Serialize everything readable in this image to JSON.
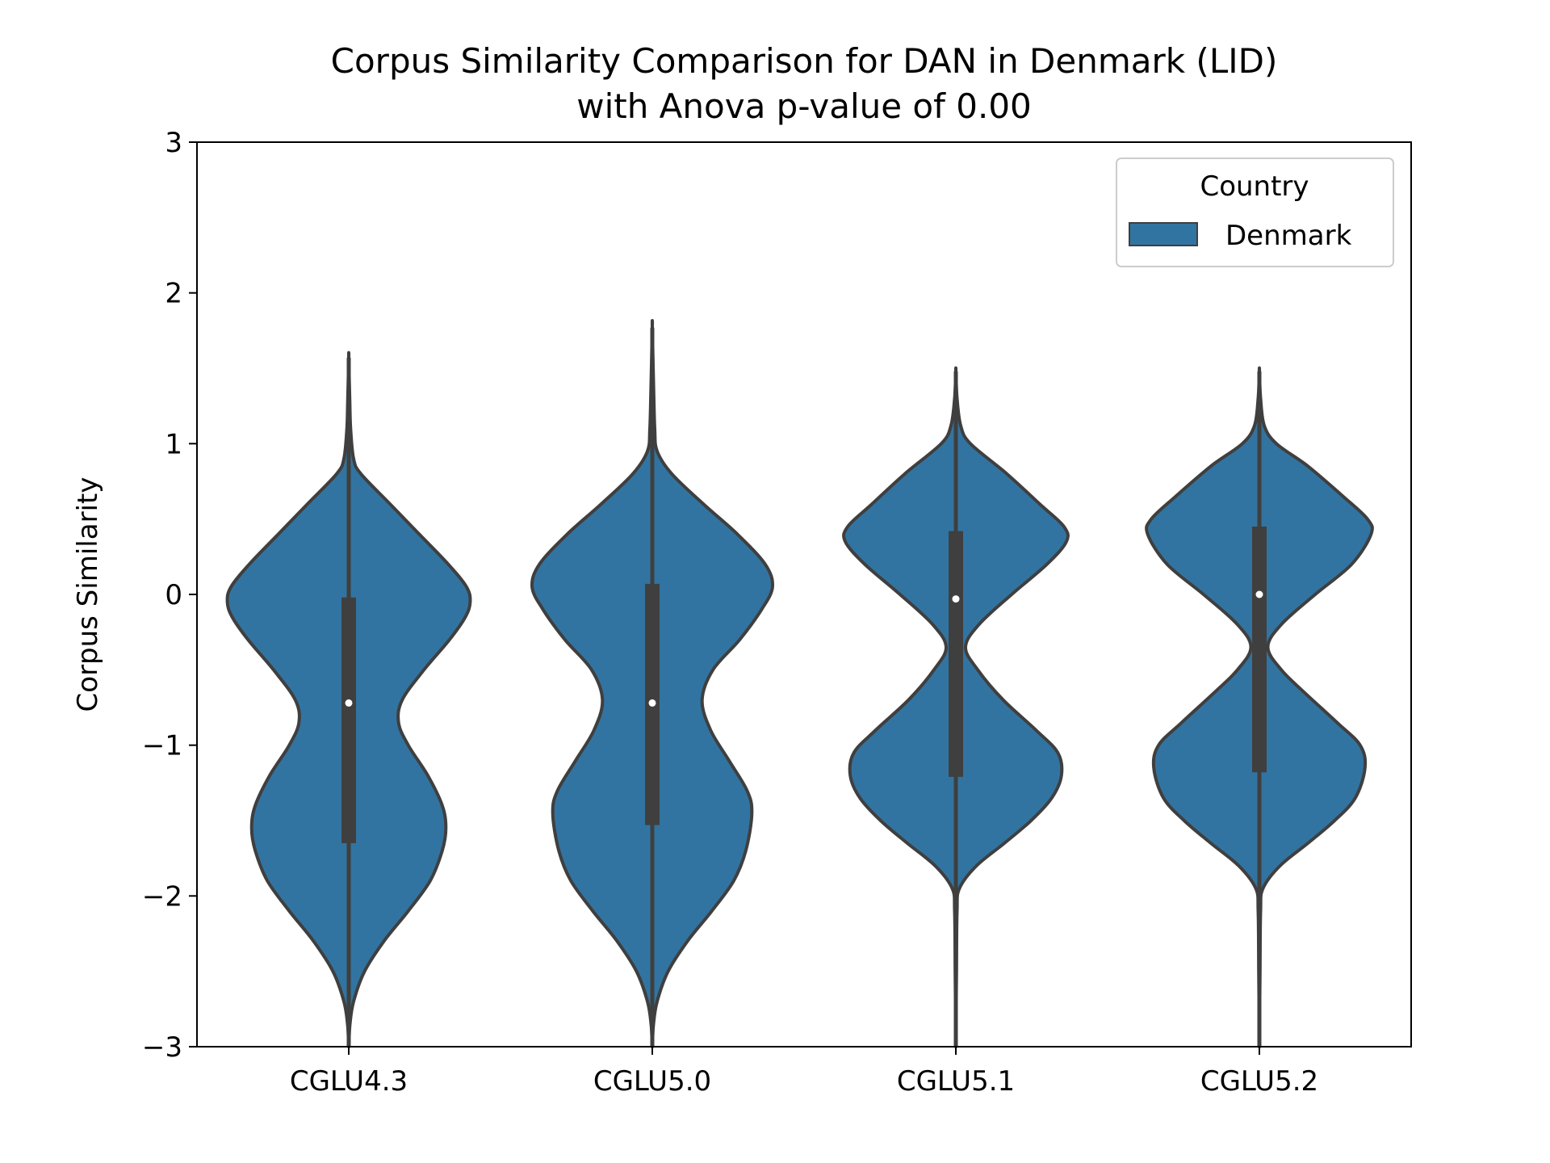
{
  "chart_data": {
    "type": "violin",
    "title_line1": "Corpus Similarity Comparison for DAN in Denmark (LID)",
    "title_line2": "with Anova p-value of 0.00",
    "xlabel": "",
    "ylabel": "Corpus Similarity",
    "ylim": [
      -3,
      3
    ],
    "yticks": [
      -3,
      -2,
      -1,
      0,
      1,
      2,
      3
    ],
    "ytick_labels": [
      "−3",
      "−2",
      "−1",
      "0",
      "1",
      "2",
      "3"
    ],
    "categories": [
      "CGLU4.3",
      "CGLU5.0",
      "CGLU5.1",
      "CGLU5.2"
    ],
    "legend": {
      "title": "Country",
      "entries": [
        "Denmark"
      ],
      "position": "top-right"
    },
    "colors": {
      "fill": "#3274a1",
      "edge": "#3f3f3f",
      "box": "#3f3f3f",
      "median": "#ffffff"
    },
    "series": [
      {
        "name": "Denmark",
        "violins": [
          {
            "category": "CGLU4.3",
            "min": -3.0,
            "q1": -1.65,
            "median": -0.72,
            "q3": -0.02,
            "max": 1.57,
            "profile": [
              [
                -3.0,
                0.0
              ],
              [
                -2.85,
                0.01
              ],
              [
                -2.7,
                0.04
              ],
              [
                -2.5,
                0.13
              ],
              [
                -2.3,
                0.29
              ],
              [
                -2.1,
                0.49
              ],
              [
                -1.9,
                0.67
              ],
              [
                -1.7,
                0.77
              ],
              [
                -1.55,
                0.8
              ],
              [
                -1.4,
                0.77
              ],
              [
                -1.2,
                0.65
              ],
              [
                -1.0,
                0.49
              ],
              [
                -0.85,
                0.41
              ],
              [
                -0.7,
                0.44
              ],
              [
                -0.5,
                0.62
              ],
              [
                -0.3,
                0.83
              ],
              [
                -0.15,
                0.96
              ],
              [
                -0.05,
                1.0
              ],
              [
                0.05,
                0.97
              ],
              [
                0.2,
                0.82
              ],
              [
                0.4,
                0.58
              ],
              [
                0.6,
                0.34
              ],
              [
                0.8,
                0.1
              ],
              [
                0.9,
                0.04
              ],
              [
                1.1,
                0.015
              ],
              [
                1.3,
                0.008
              ],
              [
                1.57,
                0.0
              ]
            ]
          },
          {
            "category": "CGLU5.0",
            "min": -3.0,
            "q1": -1.53,
            "median": -0.72,
            "q3": 0.07,
            "max": 1.77,
            "profile": [
              [
                -3.0,
                0.0
              ],
              [
                -2.85,
                0.01
              ],
              [
                -2.7,
                0.04
              ],
              [
                -2.5,
                0.13
              ],
              [
                -2.3,
                0.29
              ],
              [
                -2.1,
                0.49
              ],
              [
                -1.9,
                0.67
              ],
              [
                -1.7,
                0.77
              ],
              [
                -1.45,
                0.82
              ],
              [
                -1.3,
                0.78
              ],
              [
                -1.1,
                0.63
              ],
              [
                -0.9,
                0.48
              ],
              [
                -0.7,
                0.41
              ],
              [
                -0.5,
                0.5
              ],
              [
                -0.3,
                0.72
              ],
              [
                -0.1,
                0.9
              ],
              [
                0.05,
                0.99
              ],
              [
                0.2,
                0.93
              ],
              [
                0.4,
                0.7
              ],
              [
                0.6,
                0.42
              ],
              [
                0.8,
                0.16
              ],
              [
                0.95,
                0.04
              ],
              [
                1.1,
                0.02
              ],
              [
                1.4,
                0.01
              ],
              [
                1.77,
                0.0
              ]
            ]
          },
          {
            "category": "CGLU5.1",
            "min": -3.0,
            "q1": -1.21,
            "median": -0.03,
            "q3": 0.42,
            "max": 1.48,
            "profile": [
              [
                -3.0,
                0.0
              ],
              [
                -2.5,
                0.005
              ],
              [
                -2.1,
                0.01
              ],
              [
                -1.95,
                0.03
              ],
              [
                -1.8,
                0.17
              ],
              [
                -1.65,
                0.4
              ],
              [
                -1.5,
                0.62
              ],
              [
                -1.35,
                0.79
              ],
              [
                -1.2,
                0.87
              ],
              [
                -1.05,
                0.84
              ],
              [
                -0.9,
                0.66
              ],
              [
                -0.7,
                0.39
              ],
              [
                -0.5,
                0.18
              ],
              [
                -0.35,
                0.08
              ],
              [
                -0.2,
                0.19
              ],
              [
                0.0,
                0.46
              ],
              [
                0.2,
                0.75
              ],
              [
                0.35,
                0.91
              ],
              [
                0.45,
                0.89
              ],
              [
                0.6,
                0.69
              ],
              [
                0.8,
                0.42
              ],
              [
                1.0,
                0.12
              ],
              [
                1.12,
                0.04
              ],
              [
                1.3,
                0.01
              ],
              [
                1.48,
                0.0
              ]
            ]
          },
          {
            "category": "CGLU5.2",
            "min": -3.0,
            "q1": -1.18,
            "median": 0.0,
            "q3": 0.45,
            "max": 1.48,
            "profile": [
              [
                -3.0,
                0.0
              ],
              [
                -2.5,
                0.005
              ],
              [
                -2.1,
                0.01
              ],
              [
                -1.95,
                0.03
              ],
              [
                -1.8,
                0.17
              ],
              [
                -1.65,
                0.4
              ],
              [
                -1.5,
                0.62
              ],
              [
                -1.35,
                0.79
              ],
              [
                -1.15,
                0.87
              ],
              [
                -1.0,
                0.83
              ],
              [
                -0.85,
                0.64
              ],
              [
                -0.65,
                0.37
              ],
              [
                -0.5,
                0.18
              ],
              [
                -0.35,
                0.07
              ],
              [
                -0.2,
                0.18
              ],
              [
                0.0,
                0.46
              ],
              [
                0.2,
                0.76
              ],
              [
                0.4,
                0.92
              ],
              [
                0.5,
                0.89
              ],
              [
                0.65,
                0.69
              ],
              [
                0.85,
                0.4
              ],
              [
                1.0,
                0.14
              ],
              [
                1.12,
                0.04
              ],
              [
                1.3,
                0.01
              ],
              [
                1.48,
                0.0
              ]
            ]
          }
        ]
      }
    ]
  }
}
